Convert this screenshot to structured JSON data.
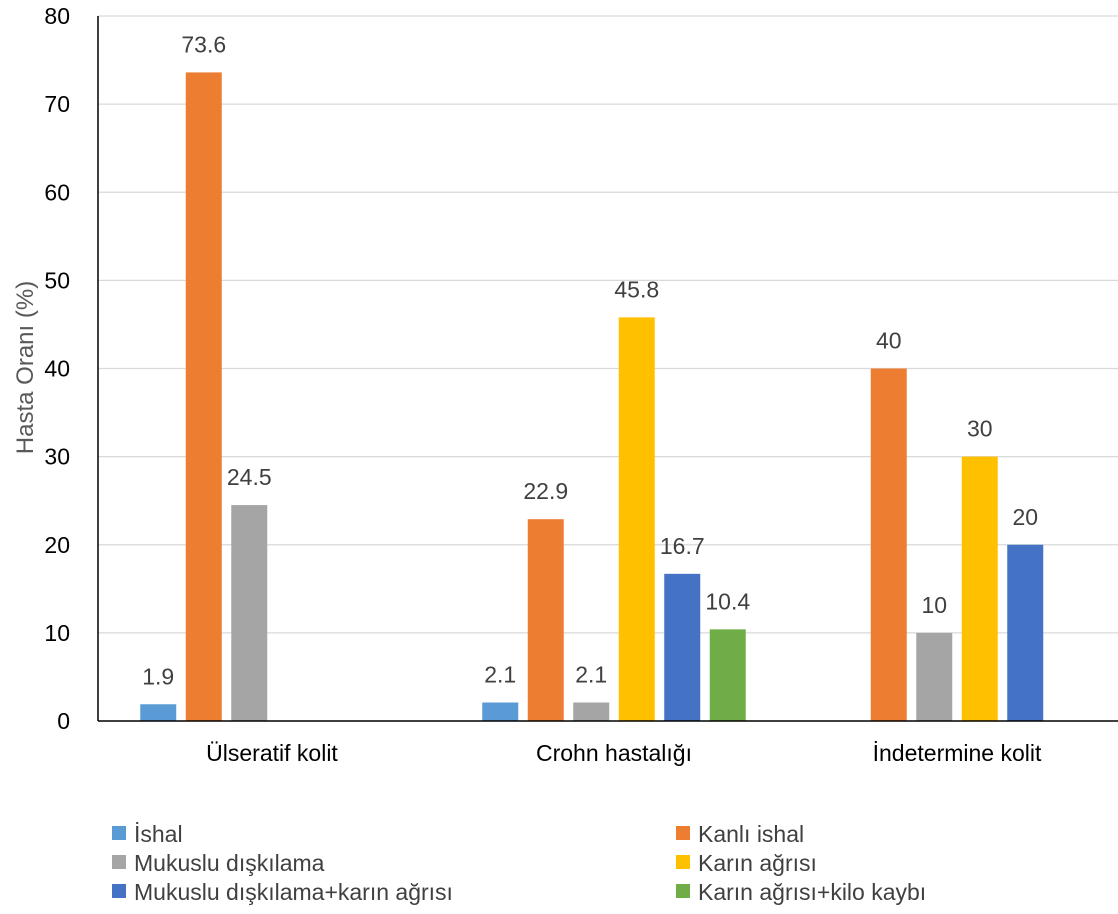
{
  "chart_data": {
    "type": "bar",
    "title": "",
    "xlabel": "",
    "ylabel": "Hasta Oranı (%)",
    "ylim": [
      0,
      80
    ],
    "yticks": [
      0,
      10,
      20,
      30,
      40,
      50,
      60,
      70,
      80
    ],
    "grid": true,
    "legend_position": "bottom",
    "categories": [
      "Ülseratif kolit",
      "Crohn hastalığı",
      "İndetermine kolit"
    ],
    "series": [
      {
        "name": "İshal",
        "color": "#5B9BD5",
        "values": [
          1.9,
          2.1,
          null
        ]
      },
      {
        "name": "Kanlı ishal",
        "color": "#ED7D31",
        "values": [
          73.6,
          22.9,
          40
        ]
      },
      {
        "name": "Mukuslu dışkılama",
        "color": "#A5A5A5",
        "values": [
          24.5,
          2.1,
          10
        ]
      },
      {
        "name": "Karın ağrısı",
        "color": "#FFC000",
        "values": [
          null,
          45.8,
          30
        ]
      },
      {
        "name": "Mukuslu dışkılama+karın ağrısı",
        "color": "#4472C4",
        "values": [
          null,
          16.7,
          20
        ]
      },
      {
        "name": "Karın ağrısı+kilo kaybı",
        "color": "#70AD47",
        "values": [
          null,
          10.4,
          null
        ]
      }
    ]
  }
}
